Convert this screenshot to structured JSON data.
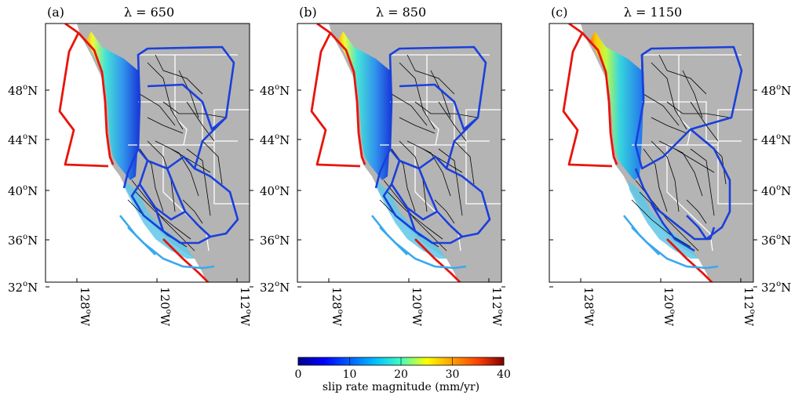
{
  "panels": [
    {
      "letter": "(a)",
      "lambda_label": "λ = 650"
    },
    {
      "letter": "(b)",
      "lambda_label": "λ = 850"
    },
    {
      "letter": "(c)",
      "lambda_label": "λ = 1150"
    }
  ],
  "lat_ticks": [
    {
      "deg": "48",
      "sup": "o",
      "hem": "N"
    },
    {
      "deg": "44",
      "sup": "o",
      "hem": "N"
    },
    {
      "deg": "40",
      "sup": "o",
      "hem": "N"
    },
    {
      "deg": "36",
      "sup": "o",
      "hem": "N"
    },
    {
      "deg": "32",
      "sup": "o",
      "hem": "N"
    }
  ],
  "lon_ticks": [
    {
      "deg": "128",
      "sup": "o",
      "hem": "W"
    },
    {
      "deg": "120",
      "sup": "o",
      "hem": "W"
    },
    {
      "deg": "112",
      "sup": "o",
      "hem": "W"
    }
  ],
  "colorbar": {
    "label": "slip rate magnitude (mm/yr)",
    "ticks": [
      "0",
      "10",
      "20",
      "30",
      "40"
    ],
    "min": 0,
    "max": 40,
    "colors": [
      "#00008f",
      "#0000ff",
      "#00bfff",
      "#40ffbf",
      "#ffff00",
      "#ff8000",
      "#ff0000",
      "#800000"
    ]
  },
  "colors": {
    "land": "#b4b4b4",
    "state_borders": "#ffffff",
    "plate_boundary": "#e8140c",
    "blocks": "#1a3fdc",
    "faults": "#000000"
  }
}
